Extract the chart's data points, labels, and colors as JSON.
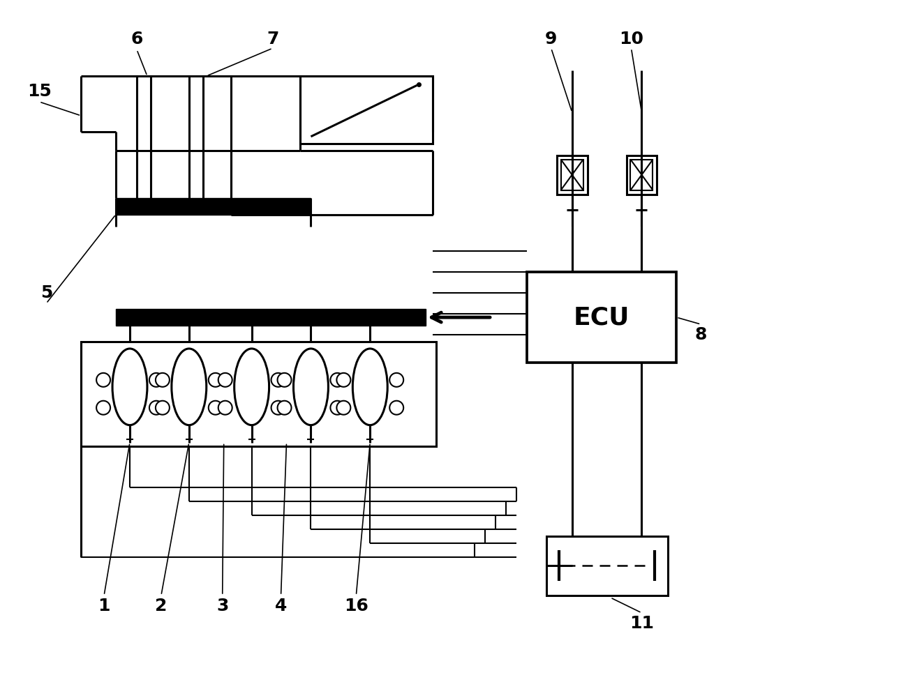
{
  "bg_color": "#ffffff",
  "line_color": "#000000",
  "label_fontsize": 18,
  "ecu_fontsize": 26,
  "fig_width": 13.24,
  "fig_height": 9.68
}
